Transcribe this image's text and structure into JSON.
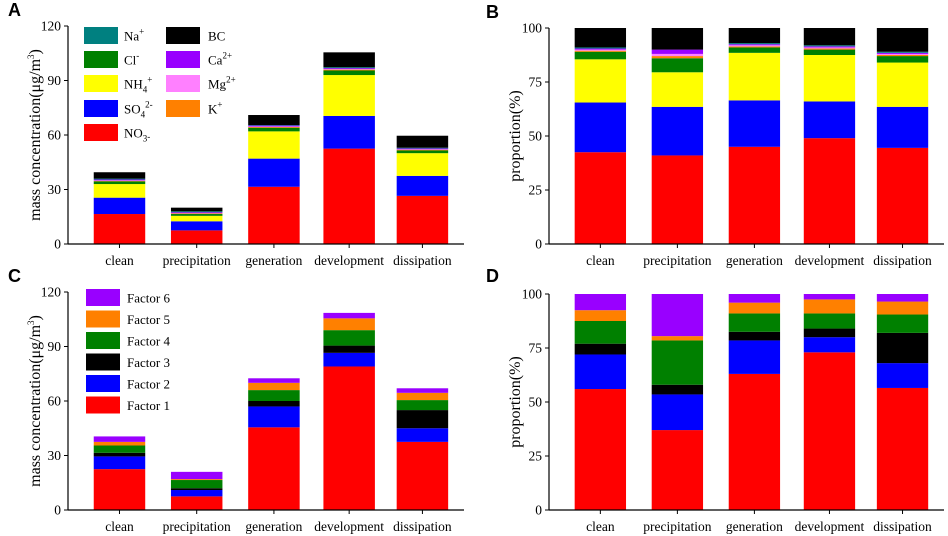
{
  "chart_data": [
    {
      "panel": "A",
      "type": "stacked_bar",
      "ylabel_main": "mass concentration(",
      "ylabel_unit_pre": "μg/m",
      "ylabel_unit_sup": "3",
      "ylabel_end": ")",
      "ylim": [
        0,
        120
      ],
      "yticks": [
        "0",
        "30",
        "60",
        "90",
        "120"
      ],
      "categories": [
        "clean",
        "precipitation",
        "generation",
        "development",
        "dissipation"
      ],
      "series": [
        {
          "name": "NO3-",
          "color": "#ff0000",
          "values": [
            16.5,
            7.5,
            31.5,
            52.5,
            26.5
          ]
        },
        {
          "name": "SO42-",
          "color": "#0000ff",
          "values": [
            9,
            5,
            15.5,
            18,
            11
          ]
        },
        {
          "name": "NH4+",
          "color": "#ffff00",
          "values": [
            7.5,
            3,
            15,
            22.5,
            12.5
          ]
        },
        {
          "name": "Cl-",
          "color": "#008000",
          "values": [
            1.5,
            1,
            2,
            2.5,
            1.5
          ]
        },
        {
          "name": "K+",
          "color": "#ff8000",
          "values": [
            0.3,
            0.3,
            0.4,
            0.5,
            0.4
          ]
        },
        {
          "name": "Mg2+",
          "color": "#ff80ff",
          "values": [
            0.2,
            0.2,
            0.3,
            0.3,
            0.2
          ]
        },
        {
          "name": "Ca2+",
          "color": "#9900ff",
          "values": [
            0.5,
            0.5,
            0.5,
            0.5,
            0.5
          ]
        },
        {
          "name": "Na+",
          "color": "#008080",
          "values": [
            0.5,
            0.5,
            0.3,
            0.5,
            0.4
          ]
        },
        {
          "name": "BC",
          "color": "#000000",
          "values": [
            3.5,
            2,
            5.5,
            8.2,
            6.6
          ]
        }
      ],
      "legend": [
        {
          "color": "#008080",
          "base": "Na",
          "sup": "+",
          "sub": "",
          "tail": ""
        },
        {
          "color": "#008000",
          "base": "Cl",
          "sup": "-",
          "sub": "",
          "tail": ""
        },
        {
          "color": "#ffff00",
          "base": "NH",
          "sub": "4",
          "sup": "+",
          "tail": ""
        },
        {
          "color": "#0000ff",
          "base": "SO",
          "sub": "4",
          "sup": "2-",
          "tail": ""
        },
        {
          "color": "#ff0000",
          "base": "NO",
          "sub": "3",
          "sup": "",
          "tail": "-"
        },
        {
          "color": "#000000",
          "base": "BC",
          "sub": "",
          "sup": "",
          "tail": ""
        },
        {
          "color": "#9900ff",
          "base": "Ca",
          "sub": "",
          "sup": "2+",
          "tail": ""
        },
        {
          "color": "#ff80ff",
          "base": "Mg",
          "sub": "",
          "sup": "2+",
          "tail": ""
        },
        {
          "color": "#ff8000",
          "base": "K",
          "sub": "",
          "sup": "+",
          "tail": ""
        }
      ]
    },
    {
      "panel": "B",
      "type": "stacked_bar",
      "ylabel": "proportion(%)",
      "ylim": [
        0,
        100
      ],
      "yticks": [
        "0",
        "25",
        "50",
        "75",
        "100"
      ],
      "categories": [
        "clean",
        "precipitation",
        "generation",
        "development",
        "dissipation"
      ],
      "series": [
        {
          "name": "NO3-",
          "color": "#ff0000",
          "values": [
            42.5,
            41,
            45,
            49,
            44.5
          ]
        },
        {
          "name": "SO42-",
          "color": "#0000ff",
          "values": [
            23,
            22.5,
            21.5,
            17,
            19
          ]
        },
        {
          "name": "NH4+",
          "color": "#ffff00",
          "values": [
            20,
            16,
            22,
            21.5,
            20.5
          ]
        },
        {
          "name": "Cl-",
          "color": "#008000",
          "values": [
            3.5,
            6.5,
            2.5,
            2.5,
            3
          ]
        },
        {
          "name": "K+",
          "color": "#ff8000",
          "values": [
            0.5,
            1,
            0.5,
            0.5,
            0.5
          ]
        },
        {
          "name": "Mg2+",
          "color": "#ff80ff",
          "values": [
            0.5,
            1,
            0.5,
            0.5,
            0.5
          ]
        },
        {
          "name": "Ca2+",
          "color": "#9900ff",
          "values": [
            0.5,
            2,
            0.5,
            0.5,
            0.5
          ]
        },
        {
          "name": "Na+",
          "color": "#008080",
          "values": [
            0.5,
            0,
            0.5,
            0.5,
            0.5
          ]
        },
        {
          "name": "BC",
          "color": "#000000",
          "values": [
            9,
            10,
            7,
            8,
            11
          ]
        }
      ]
    },
    {
      "panel": "C",
      "type": "stacked_bar",
      "ylabel_main": "mass concentration(",
      "ylabel_unit_pre": "μg/m",
      "ylabel_unit_sup": "3",
      "ylabel_end": ")",
      "ylim": [
        0,
        120
      ],
      "yticks": [
        "0",
        "30",
        "60",
        "90",
        "120"
      ],
      "categories": [
        "clean",
        "precipitation",
        "generation",
        "development",
        "dissipation"
      ],
      "series": [
        {
          "name": "Factor 1",
          "color": "#ff0000",
          "values": [
            22.5,
            7.5,
            45.5,
            79,
            37.5
          ]
        },
        {
          "name": "Factor 2",
          "color": "#0000ff",
          "values": [
            7,
            3.5,
            11.5,
            7.5,
            7.5
          ]
        },
        {
          "name": "Factor 3",
          "color": "#000000",
          "values": [
            2,
            1,
            3,
            4,
            10
          ]
        },
        {
          "name": "Factor 4",
          "color": "#008000",
          "values": [
            4,
            4.5,
            6,
            8.5,
            5.5
          ]
        },
        {
          "name": "Factor 5",
          "color": "#ff8000",
          "values": [
            2,
            0.5,
            4,
            6.5,
            4
          ]
        },
        {
          "name": "Factor 6",
          "color": "#9900ff",
          "values": [
            3,
            4,
            2.5,
            3,
            2.5
          ]
        }
      ],
      "legend": [
        {
          "color": "#9900ff",
          "label": "Factor 6"
        },
        {
          "color": "#ff8000",
          "label": "Factor 5"
        },
        {
          "color": "#008000",
          "label": "Factor 4"
        },
        {
          "color": "#000000",
          "label": "Factor 3"
        },
        {
          "color": "#0000ff",
          "label": "Factor 2"
        },
        {
          "color": "#ff0000",
          "label": "Factor 1"
        }
      ]
    },
    {
      "panel": "D",
      "type": "stacked_bar",
      "ylabel": "proportion(%)",
      "ylim": [
        0,
        100
      ],
      "yticks": [
        "0",
        "25",
        "50",
        "75",
        "100"
      ],
      "categories": [
        "clean",
        "precipitation",
        "generation",
        "development",
        "dissipation"
      ],
      "series": [
        {
          "name": "Factor 1",
          "color": "#ff0000",
          "values": [
            56,
            37,
            63,
            73,
            56.5
          ]
        },
        {
          "name": "Factor 2",
          "color": "#0000ff",
          "values": [
            16,
            16.5,
            15.5,
            7,
            11.5
          ]
        },
        {
          "name": "Factor 3",
          "color": "#000000",
          "values": [
            5,
            4.5,
            4,
            4,
            14
          ]
        },
        {
          "name": "Factor 4",
          "color": "#008000",
          "values": [
            10.5,
            20.5,
            8.5,
            7,
            8.5
          ]
        },
        {
          "name": "Factor 5",
          "color": "#ff8000",
          "values": [
            5,
            2,
            5,
            6.5,
            6
          ]
        },
        {
          "name": "Factor 6",
          "color": "#9900ff",
          "values": [
            7.5,
            19.5,
            4,
            2.5,
            3.5
          ]
        }
      ]
    }
  ]
}
